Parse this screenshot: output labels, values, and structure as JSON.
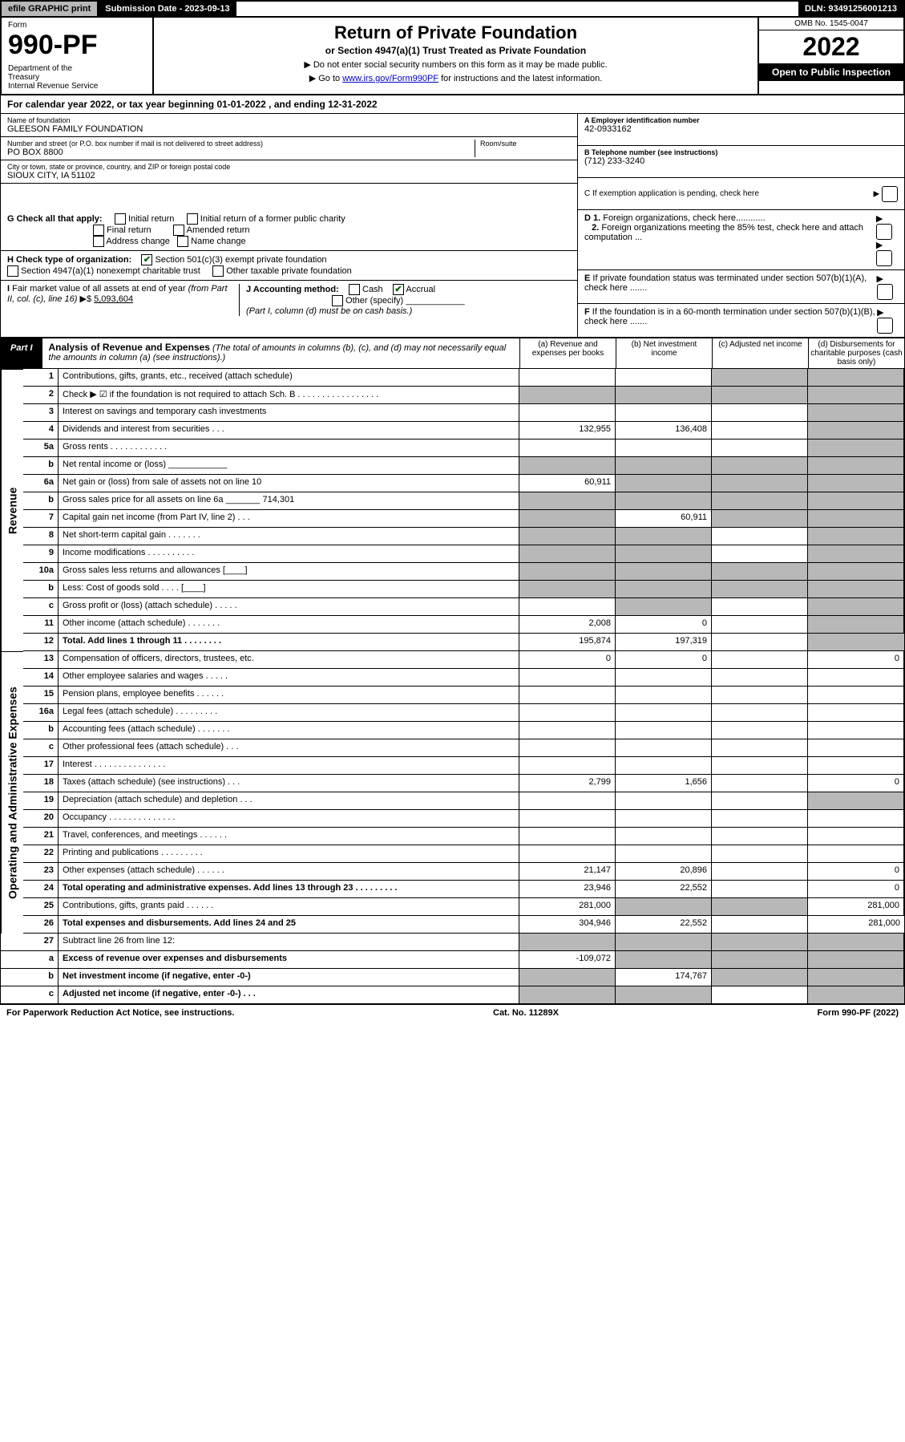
{
  "topbar": {
    "efile": "efile GRAPHIC print",
    "subdate_label": "Submission Date - 2023-09-13",
    "dln": "DLN: 93491256001213"
  },
  "header": {
    "form_label": "Form",
    "form_no": "990-PF",
    "dept": "Department of the Treasury\nInternal Revenue Service",
    "title": "Return of Private Foundation",
    "subtitle": "or Section 4947(a)(1) Trust Treated as Private Foundation",
    "note1": "▶ Do not enter social security numbers on this form as it may be made public.",
    "note2": "▶ Go to www.irs.gov/Form990PF for instructions and the latest information.",
    "link_text": "www.irs.gov/Form990PF",
    "omb": "OMB No. 1545-0047",
    "year": "2022",
    "open": "Open to Public Inspection"
  },
  "calyear": "For calendar year 2022, or tax year beginning 01-01-2022           , and ending 12-31-2022",
  "info": {
    "name_lbl": "Name of foundation",
    "name": "GLEESON FAMILY FOUNDATION",
    "addr_lbl": "Number and street (or P.O. box number if mail is not delivered to street address)",
    "addr": "PO BOX 8800",
    "room_lbl": "Room/suite",
    "city_lbl": "City or town, state or province, country, and ZIP or foreign postal code",
    "city": "SIOUX CITY, IA  51102",
    "a_lbl": "A Employer identification number",
    "a_val": "42-0933162",
    "b_lbl": "B Telephone number (see instructions)",
    "b_val": "(712) 233-3240",
    "c_lbl": "C If exemption application is pending, check here"
  },
  "checks": {
    "g": "G Check all that apply:",
    "g_initial": "Initial return",
    "g_initial_former": "Initial return of a former public charity",
    "g_final": "Final return",
    "g_amended": "Amended return",
    "g_address": "Address change",
    "g_name": "Name change",
    "h": "H Check type of organization:",
    "h_501c3": "Section 501(c)(3) exempt private foundation",
    "h_4947": "Section 4947(a)(1) nonexempt charitable trust",
    "h_other_tax": "Other taxable private foundation",
    "i": "I Fair market value of all assets at end of year (from Part II, col. (c), line 16) ▶$",
    "i_val": "5,093,604",
    "j": "J Accounting method:",
    "j_cash": "Cash",
    "j_accrual": "Accrual",
    "j_other": "Other (specify)",
    "j_note": "(Part I, column (d) must be on cash basis.)",
    "d1": "D 1. Foreign organizations, check here............",
    "d2": "2. Foreign organizations meeting the 85% test, check here and attach computation ...",
    "e": "E  If private foundation status was terminated under section 507(b)(1)(A), check here .......",
    "f": "F  If the foundation is in a 60-month termination under section 507(b)(1)(B), check here ......."
  },
  "part1": {
    "label": "Part I",
    "title": "Analysis of Revenue and Expenses",
    "title_note": "(The total of amounts in columns (b), (c), and (d) may not necessarily equal the amounts in column (a) (see instructions).)",
    "col_a": "(a) Revenue and expenses per books",
    "col_b": "(b) Net investment income",
    "col_c": "(c) Adjusted net income",
    "col_d": "(d) Disbursements for charitable purposes (cash basis only)"
  },
  "sides": {
    "revenue": "Revenue",
    "opex": "Operating and Administrative Expenses"
  },
  "rows": [
    {
      "ln": "1",
      "desc": "Contributions, gifts, grants, etc., received (attach schedule)",
      "a": "",
      "b": "",
      "c": "grey",
      "d": "grey"
    },
    {
      "ln": "2",
      "desc": "Check ▶ ☑ if the foundation is not required to attach Sch. B   .  .  .  .  .  .  .  .  .  .  .  .  .  .  .  .  .",
      "a": "grey",
      "b": "grey",
      "c": "grey",
      "d": "grey"
    },
    {
      "ln": "3",
      "desc": "Interest on savings and temporary cash investments",
      "a": "",
      "b": "",
      "c": "",
      "d": "grey"
    },
    {
      "ln": "4",
      "desc": "Dividends and interest from securities   .   .   .",
      "a": "132,955",
      "b": "136,408",
      "c": "",
      "d": "grey"
    },
    {
      "ln": "5a",
      "desc": "Gross rents   .   .   .   .   .   .   .   .   .   .   .   .",
      "a": "",
      "b": "",
      "c": "",
      "d": "grey"
    },
    {
      "ln": "b",
      "desc": "Net rental income or (loss) ____________",
      "a": "grey",
      "b": "grey",
      "c": "grey",
      "d": "grey"
    },
    {
      "ln": "6a",
      "desc": "Net gain or (loss) from sale of assets not on line 10",
      "a": "60,911",
      "b": "grey",
      "c": "grey",
      "d": "grey"
    },
    {
      "ln": "b",
      "desc": "Gross sales price for all assets on line 6a _______ 714,301",
      "a": "grey",
      "b": "grey",
      "c": "grey",
      "d": "grey"
    },
    {
      "ln": "7",
      "desc": "Capital gain net income (from Part IV, line 2)   .   .   .",
      "a": "grey",
      "b": "60,911",
      "c": "grey",
      "d": "grey"
    },
    {
      "ln": "8",
      "desc": "Net short-term capital gain   .   .   .   .   .   .   .",
      "a": "grey",
      "b": "grey",
      "c": "",
      "d": "grey"
    },
    {
      "ln": "9",
      "desc": "Income modifications .   .   .   .   .   .   .   .   .   .",
      "a": "grey",
      "b": "grey",
      "c": "",
      "d": "grey"
    },
    {
      "ln": "10a",
      "desc": "Gross sales less returns and allowances  [____]",
      "a": "grey",
      "b": "grey",
      "c": "grey",
      "d": "grey"
    },
    {
      "ln": "b",
      "desc": "Less: Cost of goods sold   .   .   .   .  [____]",
      "a": "grey",
      "b": "grey",
      "c": "grey",
      "d": "grey"
    },
    {
      "ln": "c",
      "desc": "Gross profit or (loss) (attach schedule)   .   .   .   .   .",
      "a": "",
      "b": "grey",
      "c": "",
      "d": "grey"
    },
    {
      "ln": "11",
      "desc": "Other income (attach schedule)   .   .   .   .   .   .   .",
      "a": "2,008",
      "b": "0",
      "c": "",
      "d": "grey"
    },
    {
      "ln": "12",
      "desc": "Total. Add lines 1 through 11   .   .   .   .   .   .   .   .",
      "a": "195,874",
      "b": "197,319",
      "c": "",
      "d": "grey",
      "bold": true
    }
  ],
  "rows2": [
    {
      "ln": "13",
      "desc": "Compensation of officers, directors, trustees, etc.",
      "a": "0",
      "b": "0",
      "c": "",
      "d": "0"
    },
    {
      "ln": "14",
      "desc": "Other employee salaries and wages   .   .   .   .   .",
      "a": "",
      "b": "",
      "c": "",
      "d": ""
    },
    {
      "ln": "15",
      "desc": "Pension plans, employee benefits   .   .   .   .   .   .",
      "a": "",
      "b": "",
      "c": "",
      "d": ""
    },
    {
      "ln": "16a",
      "desc": "Legal fees (attach schedule) .   .   .   .   .   .   .   .   .",
      "a": "",
      "b": "",
      "c": "",
      "d": ""
    },
    {
      "ln": "b",
      "desc": "Accounting fees (attach schedule) .   .   .   .   .   .   .",
      "a": "",
      "b": "",
      "c": "",
      "d": ""
    },
    {
      "ln": "c",
      "desc": "Other professional fees (attach schedule)   .   .   .",
      "a": "",
      "b": "",
      "c": "",
      "d": ""
    },
    {
      "ln": "17",
      "desc": "Interest .   .   .   .   .   .   .   .   .   .   .   .   .   .   .",
      "a": "",
      "b": "",
      "c": "",
      "d": ""
    },
    {
      "ln": "18",
      "desc": "Taxes (attach schedule) (see instructions)   .   .   .",
      "a": "2,799",
      "b": "1,656",
      "c": "",
      "d": "0"
    },
    {
      "ln": "19",
      "desc": "Depreciation (attach schedule) and depletion   .   .   .",
      "a": "",
      "b": "",
      "c": "",
      "d": "grey"
    },
    {
      "ln": "20",
      "desc": "Occupancy .   .   .   .   .   .   .   .   .   .   .   .   .   .",
      "a": "",
      "b": "",
      "c": "",
      "d": ""
    },
    {
      "ln": "21",
      "desc": "Travel, conferences, and meetings .   .   .   .   .   .",
      "a": "",
      "b": "",
      "c": "",
      "d": ""
    },
    {
      "ln": "22",
      "desc": "Printing and publications .   .   .   .   .   .   .   .   .",
      "a": "",
      "b": "",
      "c": "",
      "d": ""
    },
    {
      "ln": "23",
      "desc": "Other expenses (attach schedule) .   .   .   .   .   .",
      "a": "21,147",
      "b": "20,896",
      "c": "",
      "d": "0"
    },
    {
      "ln": "24",
      "desc": "Total operating and administrative expenses. Add lines 13 through 23   .   .   .   .   .   .   .   .   .",
      "a": "23,946",
      "b": "22,552",
      "c": "",
      "d": "0",
      "bold": true
    },
    {
      "ln": "25",
      "desc": "Contributions, gifts, grants paid   .   .   .   .   .   .",
      "a": "281,000",
      "b": "grey",
      "c": "grey",
      "d": "281,000"
    },
    {
      "ln": "26",
      "desc": "Total expenses and disbursements. Add lines 24 and 25",
      "a": "304,946",
      "b": "22,552",
      "c": "",
      "d": "281,000",
      "bold": true
    }
  ],
  "rows3": [
    {
      "ln": "27",
      "desc": "Subtract line 26 from line 12:",
      "a": "grey",
      "b": "grey",
      "c": "grey",
      "d": "grey"
    },
    {
      "ln": "a",
      "desc": "Excess of revenue over expenses and disbursements",
      "a": "-109,072",
      "b": "grey",
      "c": "grey",
      "d": "grey",
      "bold": true
    },
    {
      "ln": "b",
      "desc": "Net investment income (if negative, enter -0-)",
      "a": "grey",
      "b": "174,767",
      "c": "grey",
      "d": "grey",
      "bold": true
    },
    {
      "ln": "c",
      "desc": "Adjusted net income (if negative, enter -0-)   .   .   .",
      "a": "grey",
      "b": "grey",
      "c": "",
      "d": "grey",
      "bold": true
    }
  ],
  "footer": {
    "left": "For Paperwork Reduction Act Notice, see instructions.",
    "center": "Cat. No. 11289X",
    "right": "Form 990-PF (2022)"
  }
}
